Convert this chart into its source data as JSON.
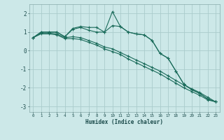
{
  "xlabel": "Humidex (Indice chaleur)",
  "bg_color": "#cce8e8",
  "grid_color": "#aacccc",
  "line_color": "#1a6b5a",
  "xlim": [
    -0.5,
    23.5
  ],
  "ylim": [
    -3.3,
    2.5
  ],
  "xticks": [
    0,
    1,
    2,
    3,
    4,
    5,
    6,
    7,
    8,
    9,
    10,
    11,
    12,
    13,
    14,
    15,
    16,
    17,
    18,
    19,
    20,
    21,
    22,
    23
  ],
  "yticks": [
    -3,
    -2,
    -1,
    0,
    1,
    2
  ],
  "series1_x": [
    0,
    1,
    2,
    3,
    4,
    5,
    6,
    7,
    8,
    9,
    10,
    11,
    12,
    13,
    14,
    15,
    16,
    17,
    18,
    19,
    20,
    21,
    22,
    23
  ],
  "series1_y": [
    0.7,
    1.0,
    1.0,
    1.0,
    0.75,
    1.2,
    1.3,
    1.25,
    1.25,
    1.0,
    1.35,
    1.3,
    1.0,
    0.9,
    0.85,
    0.55,
    -0.15,
    -0.4,
    -1.1,
    -1.8,
    -2.1,
    -2.3,
    -2.6,
    -2.75
  ],
  "series2_x": [
    0,
    1,
    2,
    3,
    4,
    5,
    6,
    7,
    8,
    9,
    10,
    11,
    12,
    13,
    14,
    15,
    16,
    17,
    18,
    19,
    20,
    21,
    22,
    23
  ],
  "series2_y": [
    0.7,
    1.0,
    1.0,
    1.0,
    0.75,
    1.15,
    1.25,
    1.1,
    1.0,
    1.0,
    2.1,
    1.3,
    1.0,
    0.9,
    0.85,
    0.55,
    -0.15,
    -0.4,
    -1.1,
    -1.8,
    -2.1,
    -2.3,
    -2.6,
    -2.75
  ],
  "series3_x": [
    0,
    1,
    2,
    3,
    4,
    5,
    6,
    7,
    8,
    9,
    10,
    11,
    12,
    13,
    14,
    15,
    16,
    17,
    18,
    19,
    20,
    21,
    22,
    23
  ],
  "series3_y": [
    0.7,
    0.95,
    0.95,
    0.9,
    0.7,
    0.75,
    0.7,
    0.55,
    0.4,
    0.2,
    0.1,
    -0.1,
    -0.3,
    -0.5,
    -0.7,
    -0.9,
    -1.1,
    -1.35,
    -1.6,
    -1.85,
    -2.05,
    -2.25,
    -2.5,
    -2.75
  ],
  "series4_x": [
    0,
    1,
    2,
    3,
    4,
    5,
    6,
    7,
    8,
    9,
    10,
    11,
    12,
    13,
    14,
    15,
    16,
    17,
    18,
    19,
    20,
    21,
    22,
    23
  ],
  "series4_y": [
    0.7,
    0.9,
    0.9,
    0.85,
    0.65,
    0.65,
    0.6,
    0.45,
    0.3,
    0.1,
    -0.05,
    -0.2,
    -0.45,
    -0.65,
    -0.85,
    -1.05,
    -1.25,
    -1.5,
    -1.75,
    -2.0,
    -2.2,
    -2.4,
    -2.65,
    -2.75
  ]
}
